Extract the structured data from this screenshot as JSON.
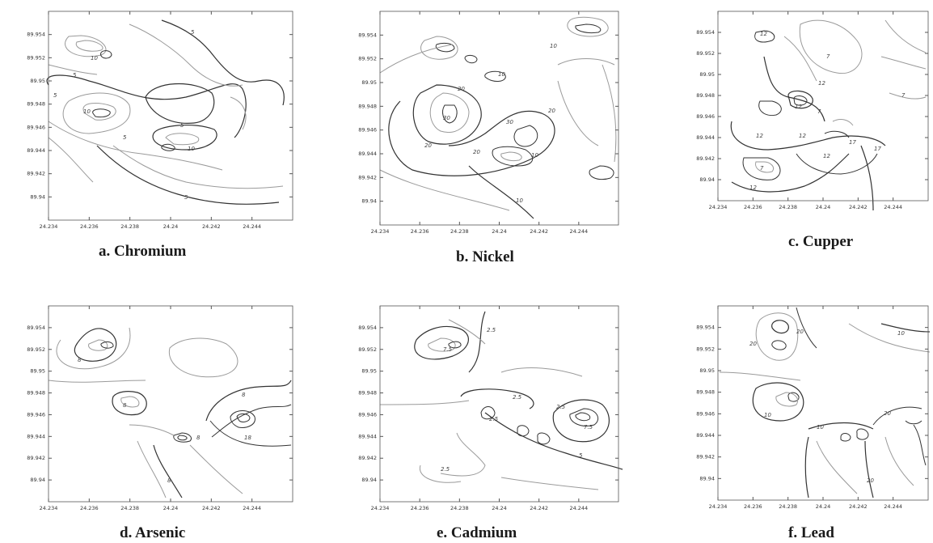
{
  "chart_data": [
    {
      "type": "contour",
      "title": "a. Chromium",
      "x_ticks": [
        "24.234",
        "24.236",
        "24.238",
        "24.24",
        "24.242",
        "24.244"
      ],
      "y_ticks": [
        "89.954",
        "89.952",
        "89.95",
        "89.948",
        "89.946",
        "89.944",
        "89.942",
        "89.94"
      ],
      "contour_labels": [
        "5",
        "10",
        "5",
        "5",
        "10",
        "10",
        "5",
        "5",
        "5"
      ],
      "xlim": [
        24.234,
        24.246
      ],
      "ylim": [
        89.938,
        89.956
      ]
    },
    {
      "type": "contour",
      "title": "b. Nickel",
      "x_ticks": [
        "24.234",
        "24.236",
        "24.238",
        "24.24",
        "24.242",
        "24.244"
      ],
      "y_ticks": [
        "89.954",
        "89.952",
        "89.95",
        "89.948",
        "89.946",
        "89.944",
        "89.942",
        "89.94"
      ],
      "contour_labels": [
        "10",
        "30",
        "10",
        "20",
        "30",
        "20",
        "20",
        "20",
        "10",
        "10"
      ],
      "xlim": [
        24.234,
        24.246
      ],
      "ylim": [
        89.938,
        89.956
      ]
    },
    {
      "type": "contour",
      "title": "c. Cupper",
      "x_ticks": [
        "24.234",
        "24.236",
        "24.238",
        "24.24",
        "24.242",
        "24.244"
      ],
      "y_ticks": [
        "89.954",
        "89.952",
        "89.95",
        "89.948",
        "89.946",
        "89.944",
        "89.942",
        "89.94"
      ],
      "contour_labels": [
        "12",
        "7",
        "12",
        "7",
        "12",
        "7",
        "12",
        "12",
        "17",
        "17",
        "12",
        "7",
        "12"
      ],
      "xlim": [
        24.234,
        24.246
      ],
      "ylim": [
        89.938,
        89.956
      ]
    },
    {
      "type": "contour",
      "title": "d. Arsenic",
      "x_ticks": [
        "24.234",
        "24.236",
        "24.238",
        "24.24",
        "24.242",
        "24.244"
      ],
      "y_ticks": [
        "89.954",
        "89.952",
        "89.95",
        "89.948",
        "89.946",
        "89.944",
        "89.942",
        "89.94"
      ],
      "contour_labels": [
        "8",
        "8",
        "8",
        "18",
        "8",
        "8"
      ],
      "xlim": [
        24.234,
        24.246
      ],
      "ylim": [
        89.938,
        89.956
      ]
    },
    {
      "type": "contour",
      "title": "e. Cadmium",
      "x_ticks": [
        "24.234",
        "24.236",
        "24.238",
        "24.24",
        "24.242",
        "24.244"
      ],
      "y_ticks": [
        "89.954",
        "89.952",
        "89.95",
        "89.948",
        "89.946",
        "89.944",
        "89.942",
        "89.94"
      ],
      "contour_labels": [
        "7.5",
        "2.5",
        "2.5",
        "2.5",
        "7.5",
        "2.5",
        "5",
        "2.5"
      ],
      "xlim": [
        24.234,
        24.246
      ],
      "ylim": [
        89.938,
        89.956
      ]
    },
    {
      "type": "contour",
      "title": "f. Lead",
      "x_ticks": [
        "24.234",
        "24.236",
        "24.238",
        "24.24",
        "24.242",
        "24.244"
      ],
      "y_ticks": [
        "89.954",
        "89.952",
        "89.95",
        "89.948",
        "89.946",
        "89.944",
        "89.942",
        "89.94"
      ],
      "contour_labels": [
        "20",
        "10",
        "20",
        "10",
        "10",
        "20",
        "20"
      ],
      "xlim": [
        24.234,
        24.246
      ],
      "ylim": [
        89.938,
        89.956
      ]
    }
  ],
  "colors": {
    "major": "#333333",
    "minor": "#9a9a9a",
    "frame": "#555555"
  }
}
